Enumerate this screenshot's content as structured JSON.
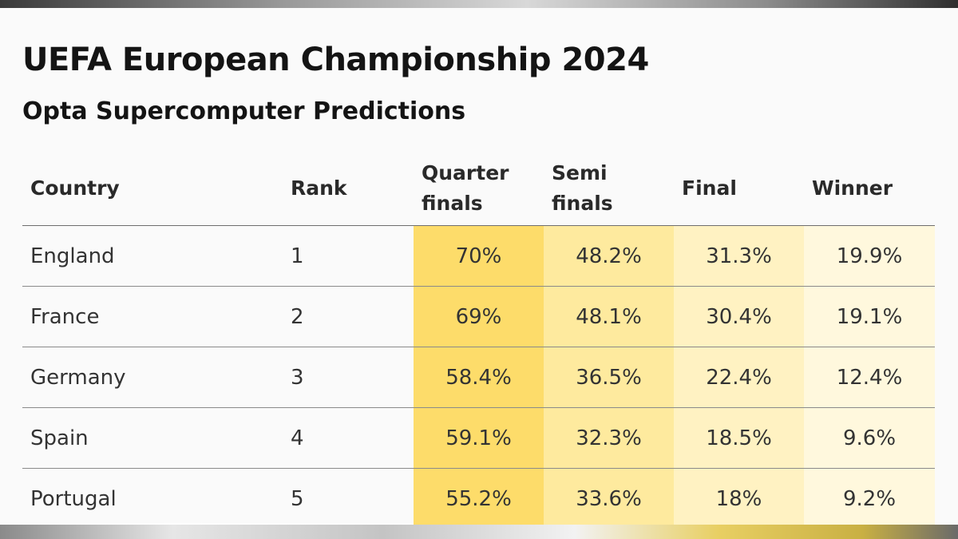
{
  "chart_data": {
    "type": "table",
    "title": "UEFA European Championship 2024",
    "subtitle": "Opta Supercomputer Predictions",
    "columns": [
      "Country",
      "Rank",
      "Quarter\nfinals",
      "Semi\nfinals",
      "Final",
      "Winner"
    ],
    "rows": [
      {
        "country": "England",
        "rank": "1",
        "qf": "70%",
        "sf": "48.2%",
        "final": "31.3%",
        "winner": "19.9%"
      },
      {
        "country": "France",
        "rank": "2",
        "qf": "69%",
        "sf": "48.1%",
        "final": "30.4%",
        "winner": "19.1%"
      },
      {
        "country": "Germany",
        "rank": "3",
        "qf": "58.4%",
        "sf": "36.5%",
        "final": "22.4%",
        "winner": "12.4%"
      },
      {
        "country": "Spain",
        "rank": "4",
        "qf": "59.1%",
        "sf": "32.3%",
        "final": "18.5%",
        "winner": "9.6%"
      },
      {
        "country": "Portugal",
        "rank": "5",
        "qf": "55.2%",
        "sf": "33.6%",
        "final": "18%",
        "winner": "9.2%"
      }
    ]
  },
  "colors": {
    "quarter_finals_column": "#fddc6a",
    "semi_finals_column": "#feea9e",
    "final_column": "#fff2c2",
    "winner_column": "#fff8dd",
    "text": "#141414",
    "rule": "#8a8a8a"
  }
}
